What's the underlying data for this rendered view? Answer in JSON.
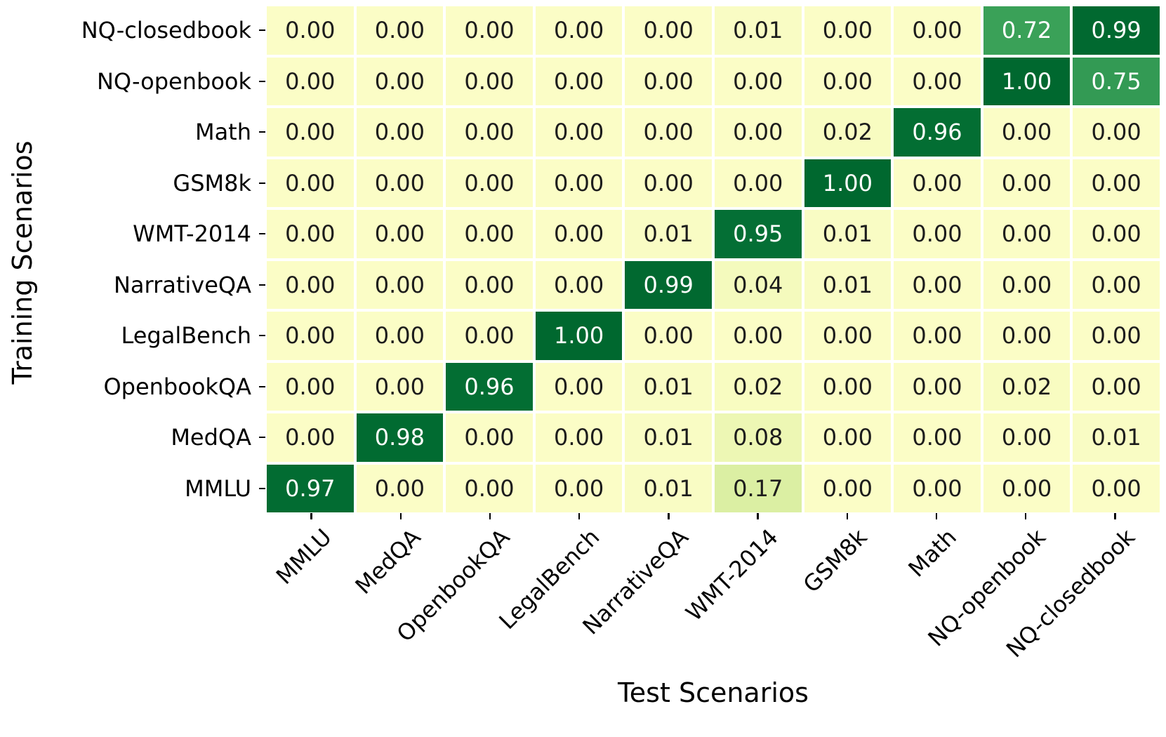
{
  "chart_data": {
    "type": "heatmap",
    "title": "",
    "xlabel": "Test Scenarios",
    "ylabel": "Training Scenarios",
    "x_categories": [
      "MMLU",
      "MedQA",
      "OpenbookQA",
      "LegalBench",
      "NarrativeQA",
      "WMT-2014",
      "GSM8k",
      "Math",
      "NQ-openbook",
      "NQ-closedbook"
    ],
    "y_categories": [
      "NQ-closedbook",
      "NQ-openbook",
      "Math",
      "GSM8k",
      "WMT-2014",
      "NarrativeQA",
      "LegalBench",
      "OpenbookQA",
      "MedQA",
      "MMLU"
    ],
    "values": [
      [
        0.0,
        0.0,
        0.0,
        0.0,
        0.0,
        0.01,
        0.0,
        0.0,
        0.72,
        0.99
      ],
      [
        0.0,
        0.0,
        0.0,
        0.0,
        0.0,
        0.0,
        0.0,
        0.0,
        1.0,
        0.75
      ],
      [
        0.0,
        0.0,
        0.0,
        0.0,
        0.0,
        0.0,
        0.02,
        0.96,
        0.0,
        0.0
      ],
      [
        0.0,
        0.0,
        0.0,
        0.0,
        0.0,
        0.0,
        1.0,
        0.0,
        0.0,
        0.0
      ],
      [
        0.0,
        0.0,
        0.0,
        0.0,
        0.01,
        0.95,
        0.01,
        0.0,
        0.0,
        0.0
      ],
      [
        0.0,
        0.0,
        0.0,
        0.0,
        0.99,
        0.04,
        0.01,
        0.0,
        0.0,
        0.0
      ],
      [
        0.0,
        0.0,
        0.0,
        1.0,
        0.0,
        0.0,
        0.0,
        0.0,
        0.0,
        0.0
      ],
      [
        0.0,
        0.0,
        0.96,
        0.0,
        0.01,
        0.02,
        0.0,
        0.0,
        0.02,
        0.0
      ],
      [
        0.0,
        0.98,
        0.0,
        0.0,
        0.01,
        0.08,
        0.0,
        0.0,
        0.0,
        0.01
      ],
      [
        0.97,
        0.0,
        0.0,
        0.0,
        0.01,
        0.17,
        0.0,
        0.0,
        0.0,
        0.0
      ]
    ],
    "value_format_decimals": 2,
    "vmin": 0,
    "vmax": 1,
    "grid_on": false,
    "legend": "none",
    "colormap": {
      "name": "YlGn",
      "stops": [
        [
          0.0,
          "#fbfdc6"
        ],
        [
          0.1,
          "#eaf6af"
        ],
        [
          0.2,
          "#d4ec9e"
        ],
        [
          0.35,
          "#a9db8b"
        ],
        [
          0.5,
          "#78c679"
        ],
        [
          0.65,
          "#4bb062"
        ],
        [
          0.78,
          "#2c9450"
        ],
        [
          0.9,
          "#07763a"
        ],
        [
          1.0,
          "#00682f"
        ]
      ]
    },
    "colors": {
      "annotation_dark": "#1c1c1c",
      "annotation_light": "#ffffff",
      "cell_gap": "#ffffff",
      "tick": "#000000",
      "light_text_threshold": 0.5
    }
  }
}
